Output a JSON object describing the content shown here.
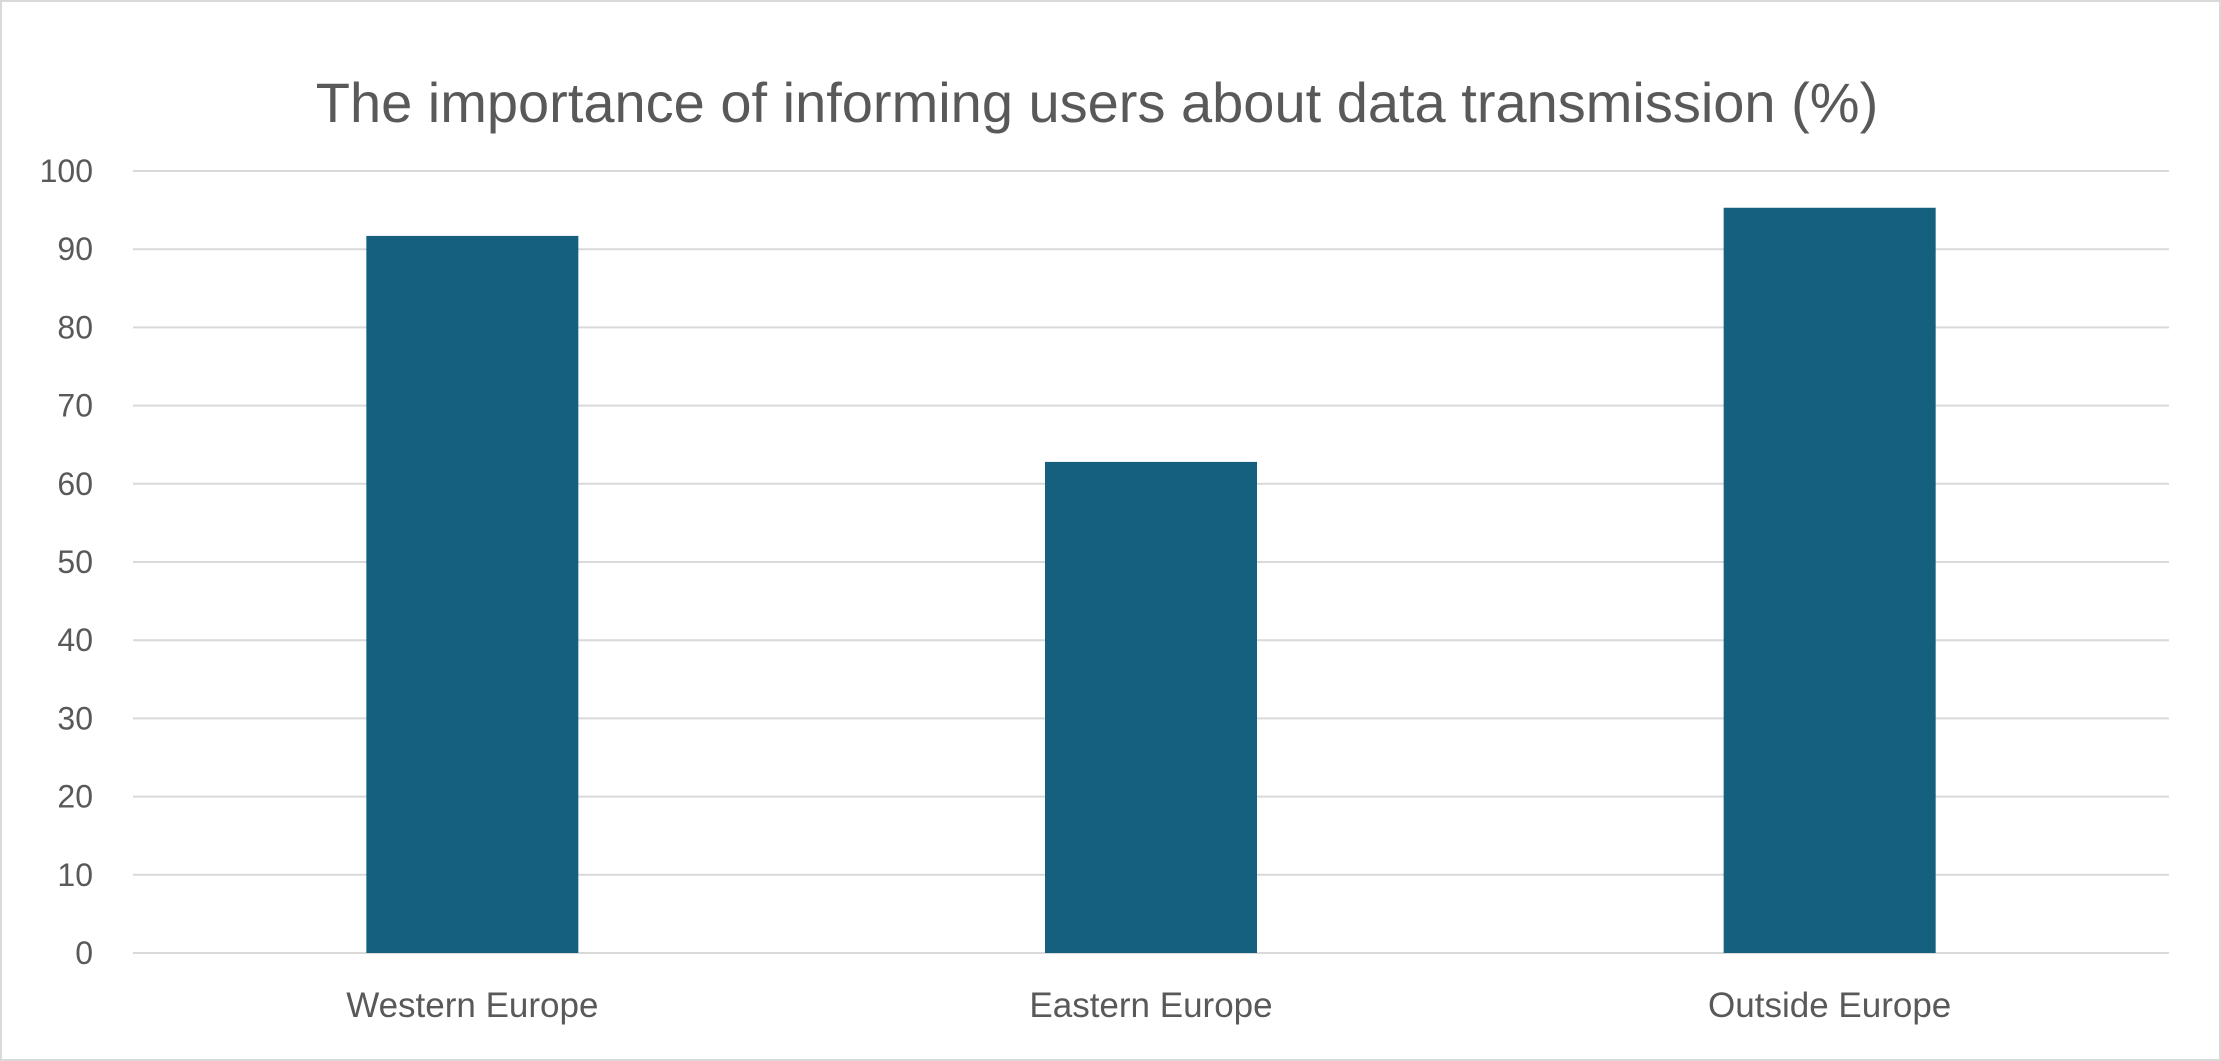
{
  "chart_data": {
    "type": "bar",
    "title": "The importance of informing users about data transmission (%)",
    "xlabel": "",
    "ylabel": "",
    "categories": [
      "Western Europe",
      "Eastern Europe",
      "Outside Europe"
    ],
    "values": [
      91.7,
      62.8,
      95.3
    ],
    "ylim": [
      0,
      100
    ],
    "yticks": [
      "0",
      "10",
      "20",
      "30",
      "40",
      "50",
      "60",
      "70",
      "80",
      "90",
      "100"
    ],
    "grid": true,
    "legend": "none",
    "bar_color": "#15607f",
    "grid_color": "#d9d9d9",
    "text_color": "#595959"
  }
}
